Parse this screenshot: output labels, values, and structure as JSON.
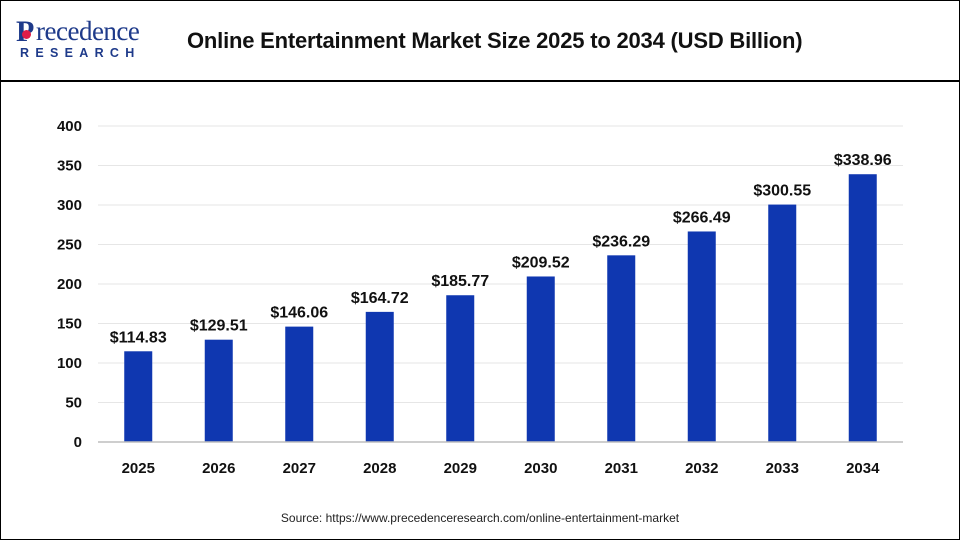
{
  "brand": {
    "logo_initial": "P",
    "logo_word": "recedence",
    "logo_sub": "RESEARCH"
  },
  "colors": {
    "bar": "#0f37b0",
    "brand": "#1e3a8a",
    "brand_accent": "#e11d48"
  },
  "source_text": "Source: https://www.precedenceresearch.com/online-entertainment-market",
  "chart_data": {
    "type": "bar",
    "title": "Online Entertainment Market Size 2025 to 2034 (USD Billion)",
    "xlabel": "",
    "ylabel": "",
    "categories": [
      "2025",
      "2026",
      "2027",
      "2028",
      "2029",
      "2030",
      "2031",
      "2032",
      "2033",
      "2034"
    ],
    "values": [
      114.83,
      129.51,
      146.06,
      164.72,
      185.77,
      209.52,
      236.29,
      266.49,
      300.55,
      338.96
    ],
    "value_labels": [
      "$114.83",
      "$129.51",
      "$146.06",
      "$164.72",
      "$185.77",
      "$209.52",
      "$236.29",
      "$266.49",
      "$300.55",
      "$338.96"
    ],
    "ylim": [
      0,
      400
    ],
    "yticks": [
      0,
      50,
      100,
      150,
      200,
      250,
      300,
      350,
      400
    ],
    "grid": true,
    "legend": "none"
  }
}
